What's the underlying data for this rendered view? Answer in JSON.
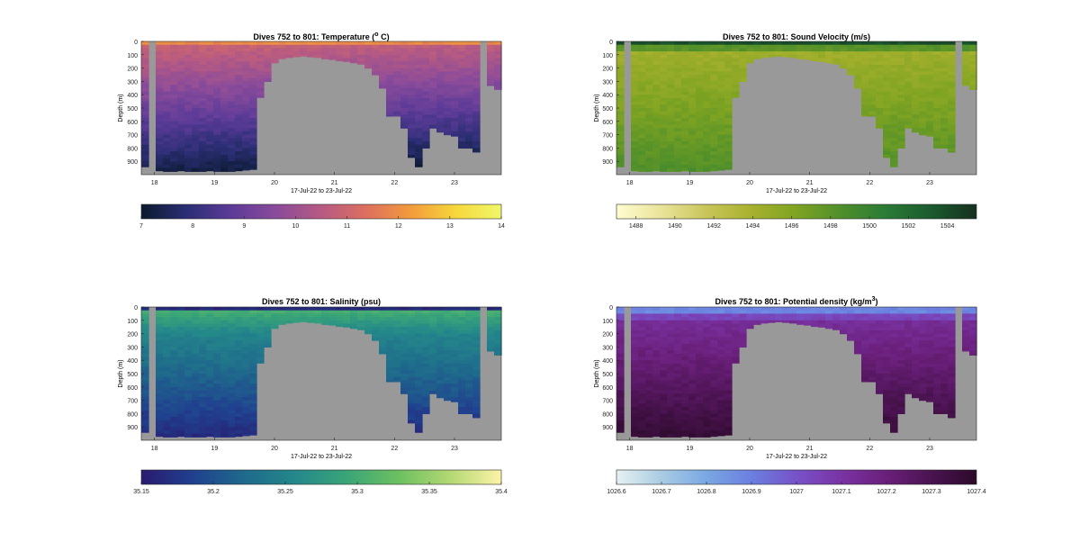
{
  "chart_data": [
    {
      "type": "heatmap",
      "variable": "temperature",
      "title": "Dives 752 to 801: Temperature (",
      "title_sup": "o",
      "title_tail": " C)",
      "xlabel": "17-Jul-22 to 23-Jul-22",
      "ylabel": "Depth (m)",
      "xlim": [
        17.78,
        23.78
      ],
      "ylim": [
        0,
        1000
      ],
      "x_ticks": [
        18,
        19,
        20,
        21,
        22,
        23
      ],
      "y_ticks": [
        0,
        100,
        200,
        300,
        400,
        500,
        600,
        700,
        800,
        900
      ],
      "colorbar": {
        "min": 7,
        "max": 14,
        "ticks": [
          "7",
          "8",
          "9",
          "10",
          "11",
          "12",
          "13",
          "14"
        ],
        "colormap": "thermal",
        "colors": [
          "#0a1a2e",
          "#2b2e74",
          "#5c3b98",
          "#8a4b9a",
          "#b65a83",
          "#dd6f5e",
          "#f39b3c",
          "#f6d83c",
          "#f0f76a"
        ]
      },
      "fill_color": "#999999"
    },
    {
      "type": "heatmap",
      "variable": "sound_velocity",
      "title": "Dives 752 to 801: Sound Velocity (m/s)",
      "xlabel": "17-Jul-22 to 23-Jul-22",
      "ylabel": "Depth (m)",
      "xlim": [
        17.78,
        23.78
      ],
      "ylim": [
        0,
        1000
      ],
      "x_ticks": [
        18,
        19,
        20,
        21,
        22,
        23
      ],
      "y_ticks": [
        0,
        100,
        200,
        300,
        400,
        500,
        600,
        700,
        800,
        900
      ],
      "colorbar": {
        "min": 1487,
        "max": 1505.5,
        "ticks": [
          "1488",
          "1490",
          "1492",
          "1494",
          "1496",
          "1498",
          "1500",
          "1502",
          "1504"
        ],
        "colormap": "speed",
        "colors": [
          "#fffdd0",
          "#e9e39a",
          "#c9c55a",
          "#a7b12e",
          "#7ea322",
          "#4f8f2a",
          "#2a7a36",
          "#1b5a2e",
          "#15301f"
        ]
      },
      "fill_color": "#999999"
    },
    {
      "type": "heatmap",
      "variable": "salinity",
      "title": "Dives 752 to 801: Salinity (psu)",
      "xlabel": "17-Jul-22 to 23-Jul-22",
      "ylabel": "Depth (m)",
      "xlim": [
        17.78,
        23.78
      ],
      "ylim": [
        0,
        1000
      ],
      "x_ticks": [
        18,
        19,
        20,
        21,
        22,
        23
      ],
      "y_ticks": [
        0,
        100,
        200,
        300,
        400,
        500,
        600,
        700,
        800,
        900
      ],
      "colorbar": {
        "min": 35.15,
        "max": 35.4,
        "ticks": [
          "35.15",
          "35.2",
          "35.25",
          "35.3",
          "35.35",
          "35.4"
        ],
        "colormap": "haline",
        "colors": [
          "#2a1a6e",
          "#20408f",
          "#1f6a8c",
          "#24888a",
          "#3aa578",
          "#6cc060",
          "#b3d873",
          "#fdf3a8"
        ]
      },
      "fill_color": "#999999"
    },
    {
      "type": "heatmap",
      "variable": "potential_density",
      "title": "Dives 752 to 801: Potential density (kg/m",
      "title_sup": "3",
      "title_tail": ")",
      "xlabel": "17-Jul-22 to 23-Jul-22",
      "ylabel": "Depth (m)",
      "xlim": [
        17.78,
        23.78
      ],
      "ylim": [
        0,
        1000
      ],
      "x_ticks": [
        18,
        19,
        20,
        21,
        22,
        23
      ],
      "y_ticks": [
        0,
        100,
        200,
        300,
        400,
        500,
        600,
        700,
        800,
        900
      ],
      "colorbar": {
        "min": 1026.6,
        "max": 1027.4,
        "ticks": [
          "1026.6",
          "1026.7",
          "1026.8",
          "1026.9",
          "1027",
          "1027.1",
          "1027.2",
          "1027.3",
          "1027.4"
        ],
        "colormap": "dense",
        "colors": [
          "#e6f1f1",
          "#a9cce3",
          "#7aa7e3",
          "#6b7fe0",
          "#7752c9",
          "#7a33a3",
          "#6a1f7a",
          "#4a1350",
          "#2c0a2a"
        ]
      },
      "fill_color": "#999999"
    }
  ]
}
